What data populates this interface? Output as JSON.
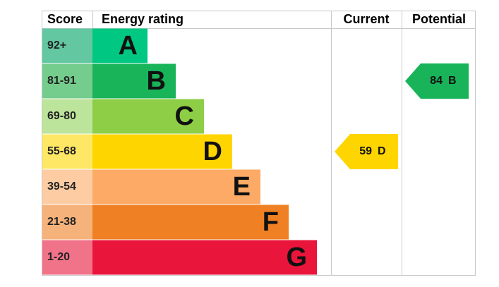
{
  "header": {
    "score": "Score",
    "rating": "Energy rating",
    "current": "Current",
    "potential": "Potential"
  },
  "bands": [
    {
      "score": "92+",
      "letter": "A",
      "color": "#00c781",
      "score_color": "#63c7a1"
    },
    {
      "score": "81-91",
      "letter": "B",
      "color": "#19b459",
      "score_color": "#74cc8d"
    },
    {
      "score": "69-80",
      "letter": "C",
      "color": "#8dce46",
      "score_color": "#bce49b"
    },
    {
      "score": "55-68",
      "letter": "D",
      "color": "#ffd500",
      "score_color": "#ffe766"
    },
    {
      "score": "39-54",
      "letter": "E",
      "color": "#fcaa65",
      "score_color": "#fdcca3"
    },
    {
      "score": "21-38",
      "letter": "F",
      "color": "#ef8023",
      "score_color": "#f5b27b"
    },
    {
      "score": "1-20",
      "letter": "G",
      "color": "#e9153b",
      "score_color": "#f17389"
    }
  ],
  "current": {
    "value": 59,
    "band": "D"
  },
  "potential": {
    "value": 84,
    "band": "B"
  }
}
